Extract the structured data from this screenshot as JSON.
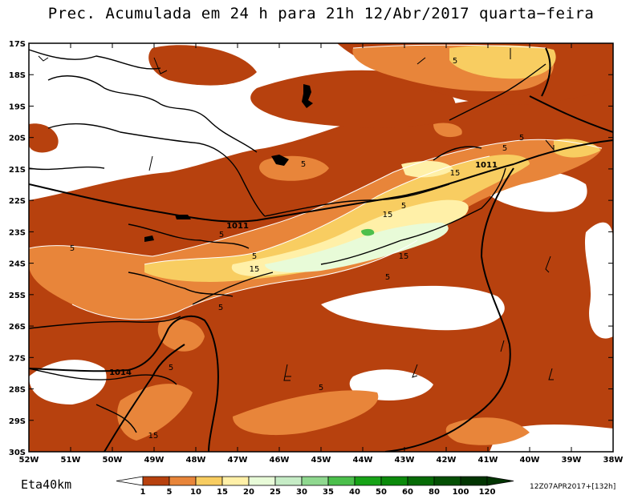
{
  "title": "Prec. Acumulada em 24 h para 21h 12/Abr/2017 quarta−feira",
  "model": "Eta40km",
  "run_info": "12Z07APR2017+[132h]",
  "lat_labels": [
    "17S",
    "18S",
    "19S",
    "20S",
    "21S",
    "22S",
    "23S",
    "24S",
    "25S",
    "26S",
    "27S",
    "28S",
    "29S",
    "30S"
  ],
  "lon_labels": [
    "52W",
    "51W",
    "50W",
    "49W",
    "48W",
    "47W",
    "46W",
    "45W",
    "44W",
    "43W",
    "42W",
    "41W",
    "40W",
    "39W",
    "38W"
  ],
  "colorbar": {
    "labels": [
      "1",
      "5",
      "10",
      "15",
      "20",
      "25",
      "30",
      "35",
      "40",
      "50",
      "60",
      "80",
      "100",
      "120"
    ],
    "colors": [
      "#ffffff",
      "#b7410e",
      "#e8853a",
      "#f8cd61",
      "#fff0a8",
      "#e8fbd8",
      "#c6ecc6",
      "#8fd88f",
      "#4cbf4c",
      "#17a317",
      "#0b8a0b",
      "#066b06",
      "#044f04",
      "#023502"
    ]
  },
  "contour_labels": [
    {
      "text": "5",
      "id": "c1"
    },
    {
      "text": "5",
      "id": "c2"
    },
    {
      "text": "5",
      "id": "c3"
    },
    {
      "text": "5",
      "id": "c4"
    },
    {
      "text": "5",
      "id": "c5"
    },
    {
      "text": "5",
      "id": "c6"
    },
    {
      "text": "5",
      "id": "c7"
    },
    {
      "text": "5",
      "id": "c8"
    },
    {
      "text": "5",
      "id": "c9"
    },
    {
      "text": "5",
      "id": "c10"
    },
    {
      "text": "5",
      "id": "c11"
    },
    {
      "text": "5",
      "id": "c12"
    },
    {
      "text": "15",
      "id": "c13"
    },
    {
      "text": "15",
      "id": "c14"
    },
    {
      "text": "15",
      "id": "c15"
    },
    {
      "text": "15",
      "id": "c16"
    },
    {
      "text": "15",
      "id": "c17"
    }
  ],
  "isobar_labels": [
    {
      "text": "1011",
      "id": "p1"
    },
    {
      "text": "1011",
      "id": "p2"
    },
    {
      "text": "1014",
      "id": "p3"
    }
  ]
}
